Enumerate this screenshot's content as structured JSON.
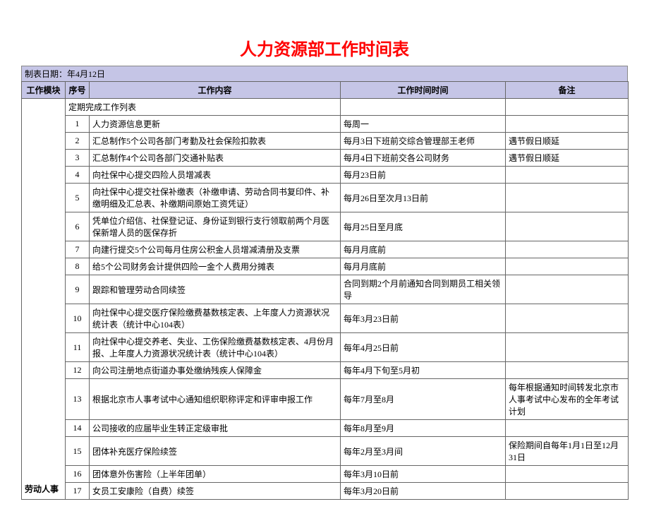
{
  "title": "人力资源部工作时间表",
  "date_line": "制表日期：年4月12日",
  "headers": {
    "module": "工作模块",
    "seq": "序号",
    "content": "工作内容",
    "time": "工作时间时间",
    "remark": "备注"
  },
  "section_header": "定期完成工作列表",
  "module_label": "劳动人事",
  "rows": [
    {
      "seq": "1",
      "content": "人力资源信息更新",
      "time": "每周一",
      "remark": ""
    },
    {
      "seq": "2",
      "content": "汇总制作5个公司各部门考勤及社会保险扣款表",
      "time": "每月3日下班前交综合管理部王老师",
      "remark": "遇节假日顺延"
    },
    {
      "seq": "3",
      "content": "汇总制作4个公司各部门交通补贴表",
      "time": "每月4日下班前交各公司财务",
      "remark": "遇节假日顺延"
    },
    {
      "seq": "4",
      "content": "向社保中心提交四险人员增减表",
      "time": "每月23日前",
      "remark": ""
    },
    {
      "seq": "5",
      "content": "向社保中心提交社保补缴表（补缴申请、劳动合同书复印件、补缴明细及汇总表、补缴期间原始工资凭证）",
      "time": "每月26日至次月13日前",
      "remark": "",
      "tall": true
    },
    {
      "seq": "6",
      "content": "凭单位介绍信、社保登记证、身份证到银行支行领取前两个月医保新增人员的医保存折",
      "time": "每月25日至月底",
      "remark": "",
      "tall": true
    },
    {
      "seq": "7",
      "content": "向建行提交5个公司每月住房公积金人员增减清册及支票",
      "time": "每月月底前",
      "remark": ""
    },
    {
      "seq": "8",
      "content": "给5个公司财务会计提供四险一金个人费用分摊表",
      "time": "每月月底前",
      "remark": ""
    },
    {
      "seq": "9",
      "content": "跟踪和管理劳动合同续签",
      "time": "合同到期2个月前通知合同到期员工相关领导",
      "remark": "",
      "tall": true
    },
    {
      "seq": "10",
      "content": "向社保中心提交医疗保险缴费基数核定表、上年度人力资源状况统计表（统计中心104表）",
      "time": "每年3月23日前",
      "remark": "",
      "tall": true
    },
    {
      "seq": "11",
      "content": "向社保中心提交养老、失业、工伤保险缴费基数核定表、4月份月报、上年度人力资源状况统计表（统计中心104表）",
      "time": "每年4月25日前",
      "remark": "",
      "tall": true
    },
    {
      "seq": "12",
      "content": "向公司注册地点街道办事处缴纳残疾人保障金",
      "time": "每年4月下旬至5月初",
      "remark": ""
    },
    {
      "seq": "13",
      "content": "根据北京市人事考试中心通知组织职称评定和评审申报工作",
      "time": "每年7月至8月",
      "remark": "每年根据通知时间转发北京市人事考试中心发布的全年考试计划",
      "xtall": true
    },
    {
      "seq": "14",
      "content": "公司接收的应届毕业生转正定级审批",
      "time": "每年8月至9月",
      "remark": ""
    },
    {
      "seq": "15",
      "content": "团体补充医疗保险续签",
      "time": "每年2月至3月间",
      "remark": "保险期间自每年1月1日至12月31日",
      "tall": true
    },
    {
      "seq": "16",
      "content": "团体意外伤害险（上半年团单）",
      "time": "每年3月10日前",
      "remark": ""
    },
    {
      "seq": "17",
      "content": "女员工安康险（自费）续签",
      "time": "每年3月20日前",
      "remark": ""
    }
  ],
  "colors": {
    "title": "#ff0000",
    "header_bg": "#c5c5e6",
    "border": "#666666",
    "cell_bg": "#ffffff"
  }
}
